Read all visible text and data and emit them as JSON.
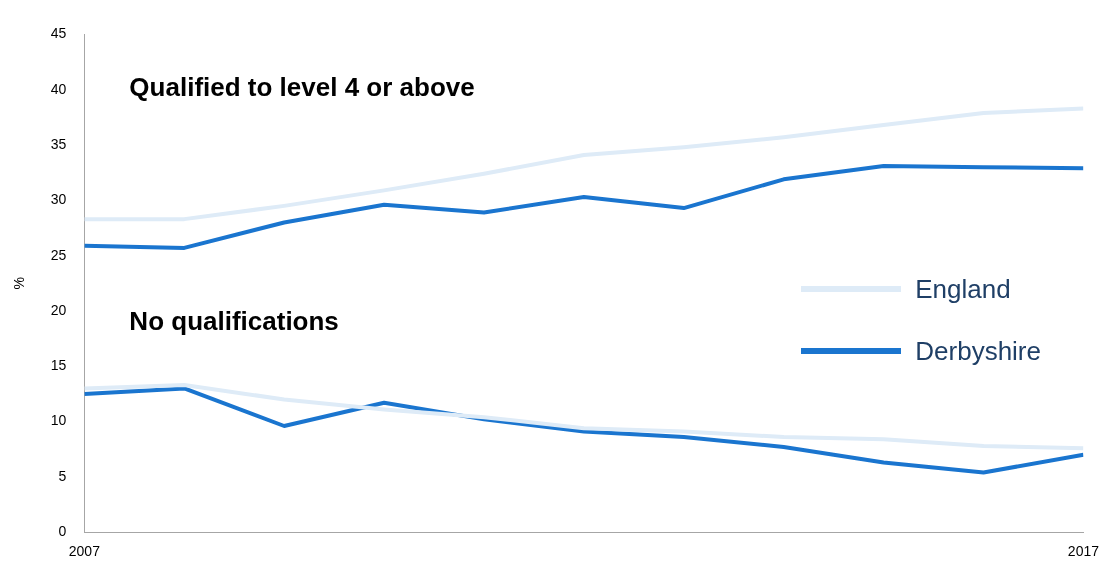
{
  "chart_data": {
    "type": "line",
    "ylabel": "%",
    "xlim": [
      2007,
      2017
    ],
    "xticks": [
      2007,
      2017
    ],
    "ylim": [
      0,
      45
    ],
    "yticks": [
      0,
      5,
      10,
      15,
      20,
      25,
      30,
      35,
      40,
      45
    ],
    "grid": false,
    "legend": "right",
    "marker": "none",
    "line_style": "solid",
    "x": [
      2007,
      2008,
      2009,
      2010,
      2011,
      2012,
      2013,
      2014,
      2015,
      2016,
      2017
    ],
    "series": [
      {
        "name": "England",
        "color": "#deebf7",
        "values": [
          28.3,
          28.3,
          29.5,
          30.9,
          32.4,
          34.1,
          34.8,
          35.7,
          36.8,
          37.9,
          38.3
        ]
      },
      {
        "name": "Derbyshire",
        "color": "#1a75cf",
        "values": [
          25.9,
          25.7,
          28.0,
          29.6,
          28.9,
          30.3,
          29.3,
          31.9,
          33.1,
          33.0,
          32.9
        ]
      },
      {
        "color": "#deebf7",
        "values": [
          13.0,
          13.3,
          12.0,
          11.1,
          10.4,
          9.4,
          9.1,
          8.6,
          8.4,
          7.8,
          7.6
        ]
      },
      {
        "color": "#1a75cf",
        "values": [
          12.5,
          13.0,
          9.6,
          11.7,
          10.2,
          9.1,
          8.6,
          7.7,
          6.3,
          5.4,
          7.0
        ]
      }
    ],
    "annotations": [
      "Qualified to level 4 or above",
      "No qualifications"
    ]
  }
}
